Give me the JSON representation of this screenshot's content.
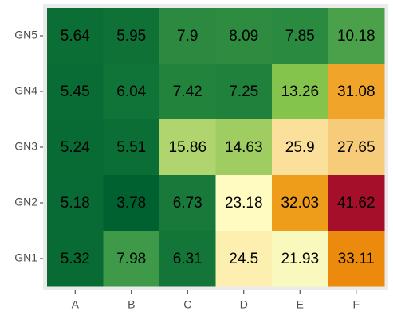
{
  "chart_data": {
    "type": "heatmap",
    "x_categories": [
      "A",
      "B",
      "C",
      "D",
      "E",
      "F"
    ],
    "y_categories": [
      "GN5",
      "GN4",
      "GN3",
      "GN2",
      "GN1"
    ],
    "values": [
      [
        5.64,
        5.95,
        7.9,
        8.09,
        7.85,
        10.18
      ],
      [
        5.45,
        6.04,
        7.42,
        7.25,
        13.26,
        31.08
      ],
      [
        5.24,
        5.51,
        15.86,
        14.63,
        25.9,
        27.65
      ],
      [
        5.18,
        3.78,
        6.73,
        23.18,
        32.03,
        41.62
      ],
      [
        5.32,
        7.98,
        6.31,
        24.5,
        21.93,
        33.11
      ]
    ],
    "colors": [
      [
        "#0b6e35",
        "#0f7136",
        "#2b8a3f",
        "#2d8c40",
        "#2a8a3f",
        "#4aa14a"
      ],
      [
        "#0a6c35",
        "#107337",
        "#22833c",
        "#20813c",
        "#84c44d",
        "#f0a52a"
      ],
      [
        "#086b34",
        "#0b6e35",
        "#b0d56e",
        "#9fcd62",
        "#fae09a",
        "#f6cb7a"
      ],
      [
        "#086a34",
        "#006130",
        "#19793a",
        "#fffbc1",
        "#ee9d1a",
        "#a50f2a"
      ],
      [
        "#096b34",
        "#3e9948",
        "#137537",
        "#fcefb0",
        "#f9f9bd",
        "#eb8a0d"
      ]
    ]
  }
}
